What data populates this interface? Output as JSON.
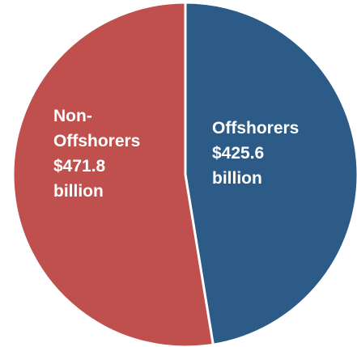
{
  "chart_data": {
    "type": "pie",
    "title": "",
    "slices": [
      {
        "label_lines": [
          "Offshorers",
          "$425.6",
          "billion"
        ],
        "category": "Offshorers",
        "value": 425.6,
        "value_text": "$425.6",
        "unit": "billion",
        "color": "#2D5B87"
      },
      {
        "label_lines": [
          "Non-",
          "Offshorers",
          "$471.8",
          "billion"
        ],
        "category": "Non-Offshorers",
        "value": 471.8,
        "value_text": "$471.8",
        "unit": "billion",
        "color": "#C0504D"
      }
    ],
    "start_angle_deg": 0,
    "direction": "clockwise",
    "legend": "none"
  }
}
